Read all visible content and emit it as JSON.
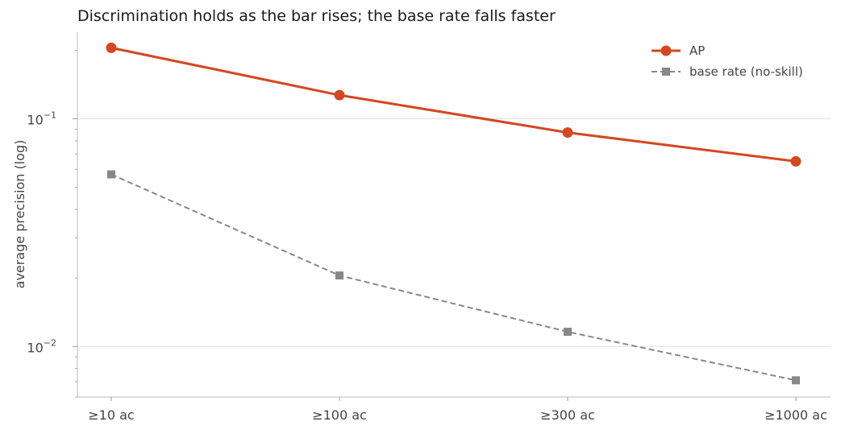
{
  "chart_data": {
    "type": "line",
    "title": "Discrimination holds as the bar rises; the base rate falls faster",
    "xlabel": "",
    "ylabel": "average precision (log)",
    "categories": [
      "≥10 ac",
      "≥100 ac",
      "≥300 ac",
      "≥1000 ac"
    ],
    "y_scale": "log",
    "ylim": [
      0.006,
      0.24
    ],
    "y_major_ticks": [
      {
        "value": 0.01,
        "base": "10",
        "exp": "−2"
      },
      {
        "value": 0.1,
        "base": "10",
        "exp": "−1"
      }
    ],
    "grid": "horizontal major",
    "legend_position": "top-right",
    "series": [
      {
        "name": "AP",
        "values": [
          0.205,
          0.127,
          0.087,
          0.065
        ],
        "color": "#d4471f",
        "marker": "circle",
        "linestyle": "solid"
      },
      {
        "name": "base rate (no-skill)",
        "values": [
          0.057,
          0.0205,
          0.0116,
          0.0071
        ],
        "color": "#888888",
        "marker": "square",
        "linestyle": "dashed"
      }
    ]
  }
}
